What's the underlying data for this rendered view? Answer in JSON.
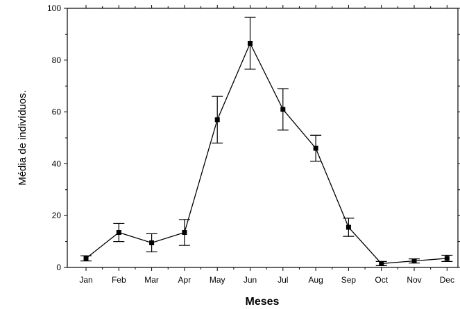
{
  "chart_data": {
    "type": "line",
    "title": "",
    "xlabel": "Meses",
    "ylabel": "Média de indivíduos.",
    "categories": [
      "Jan",
      "Feb",
      "Mar",
      "Apr",
      "May",
      "Jun",
      "Jul",
      "Aug",
      "Sep",
      "Oct",
      "Nov",
      "Dec"
    ],
    "series": [
      {
        "values": [
          3.5,
          13.5,
          9.5,
          13.5,
          57,
          86.5,
          61,
          46,
          15.5,
          1.5,
          2.5,
          3.5
        ],
        "error": [
          1,
          3.5,
          3.5,
          5,
          9,
          10,
          8,
          5,
          3.5,
          0.8,
          0.8,
          1.2
        ]
      }
    ],
    "ylim": [
      0,
      100
    ],
    "yticks": [
      "0",
      "20",
      "40",
      "60",
      "80",
      "100"
    ],
    "grid": false,
    "legend": "none",
    "colors": {
      "line": "#000000",
      "marker": "#000000",
      "axis": "#000000"
    }
  }
}
